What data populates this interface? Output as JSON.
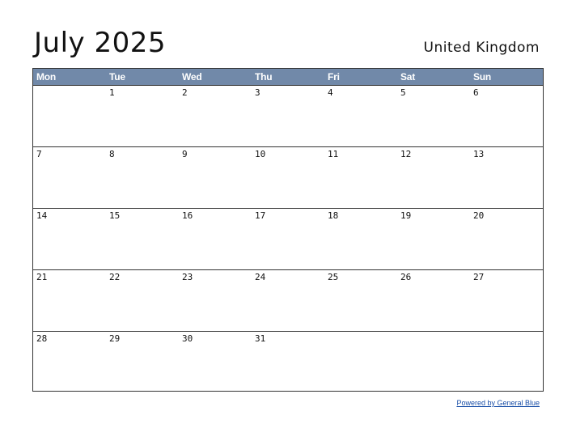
{
  "title": "July 2025",
  "country": "United Kingdom",
  "weekdays": [
    "Mon",
    "Tue",
    "Wed",
    "Thu",
    "Fri",
    "Sat",
    "Sun"
  ],
  "weeks": [
    [
      "",
      "1",
      "2",
      "3",
      "4",
      "5",
      "6"
    ],
    [
      "7",
      "8",
      "9",
      "10",
      "11",
      "12",
      "13"
    ],
    [
      "14",
      "15",
      "16",
      "17",
      "18",
      "19",
      "20"
    ],
    [
      "21",
      "22",
      "23",
      "24",
      "25",
      "26",
      "27"
    ],
    [
      "28",
      "29",
      "30",
      "31",
      "",
      "",
      ""
    ]
  ],
  "footer": {
    "link_text": "Powered by General Blue"
  },
  "colors": {
    "header_bg": "#7189a9",
    "header_text": "#ffffff",
    "link": "#1a4fa8"
  }
}
